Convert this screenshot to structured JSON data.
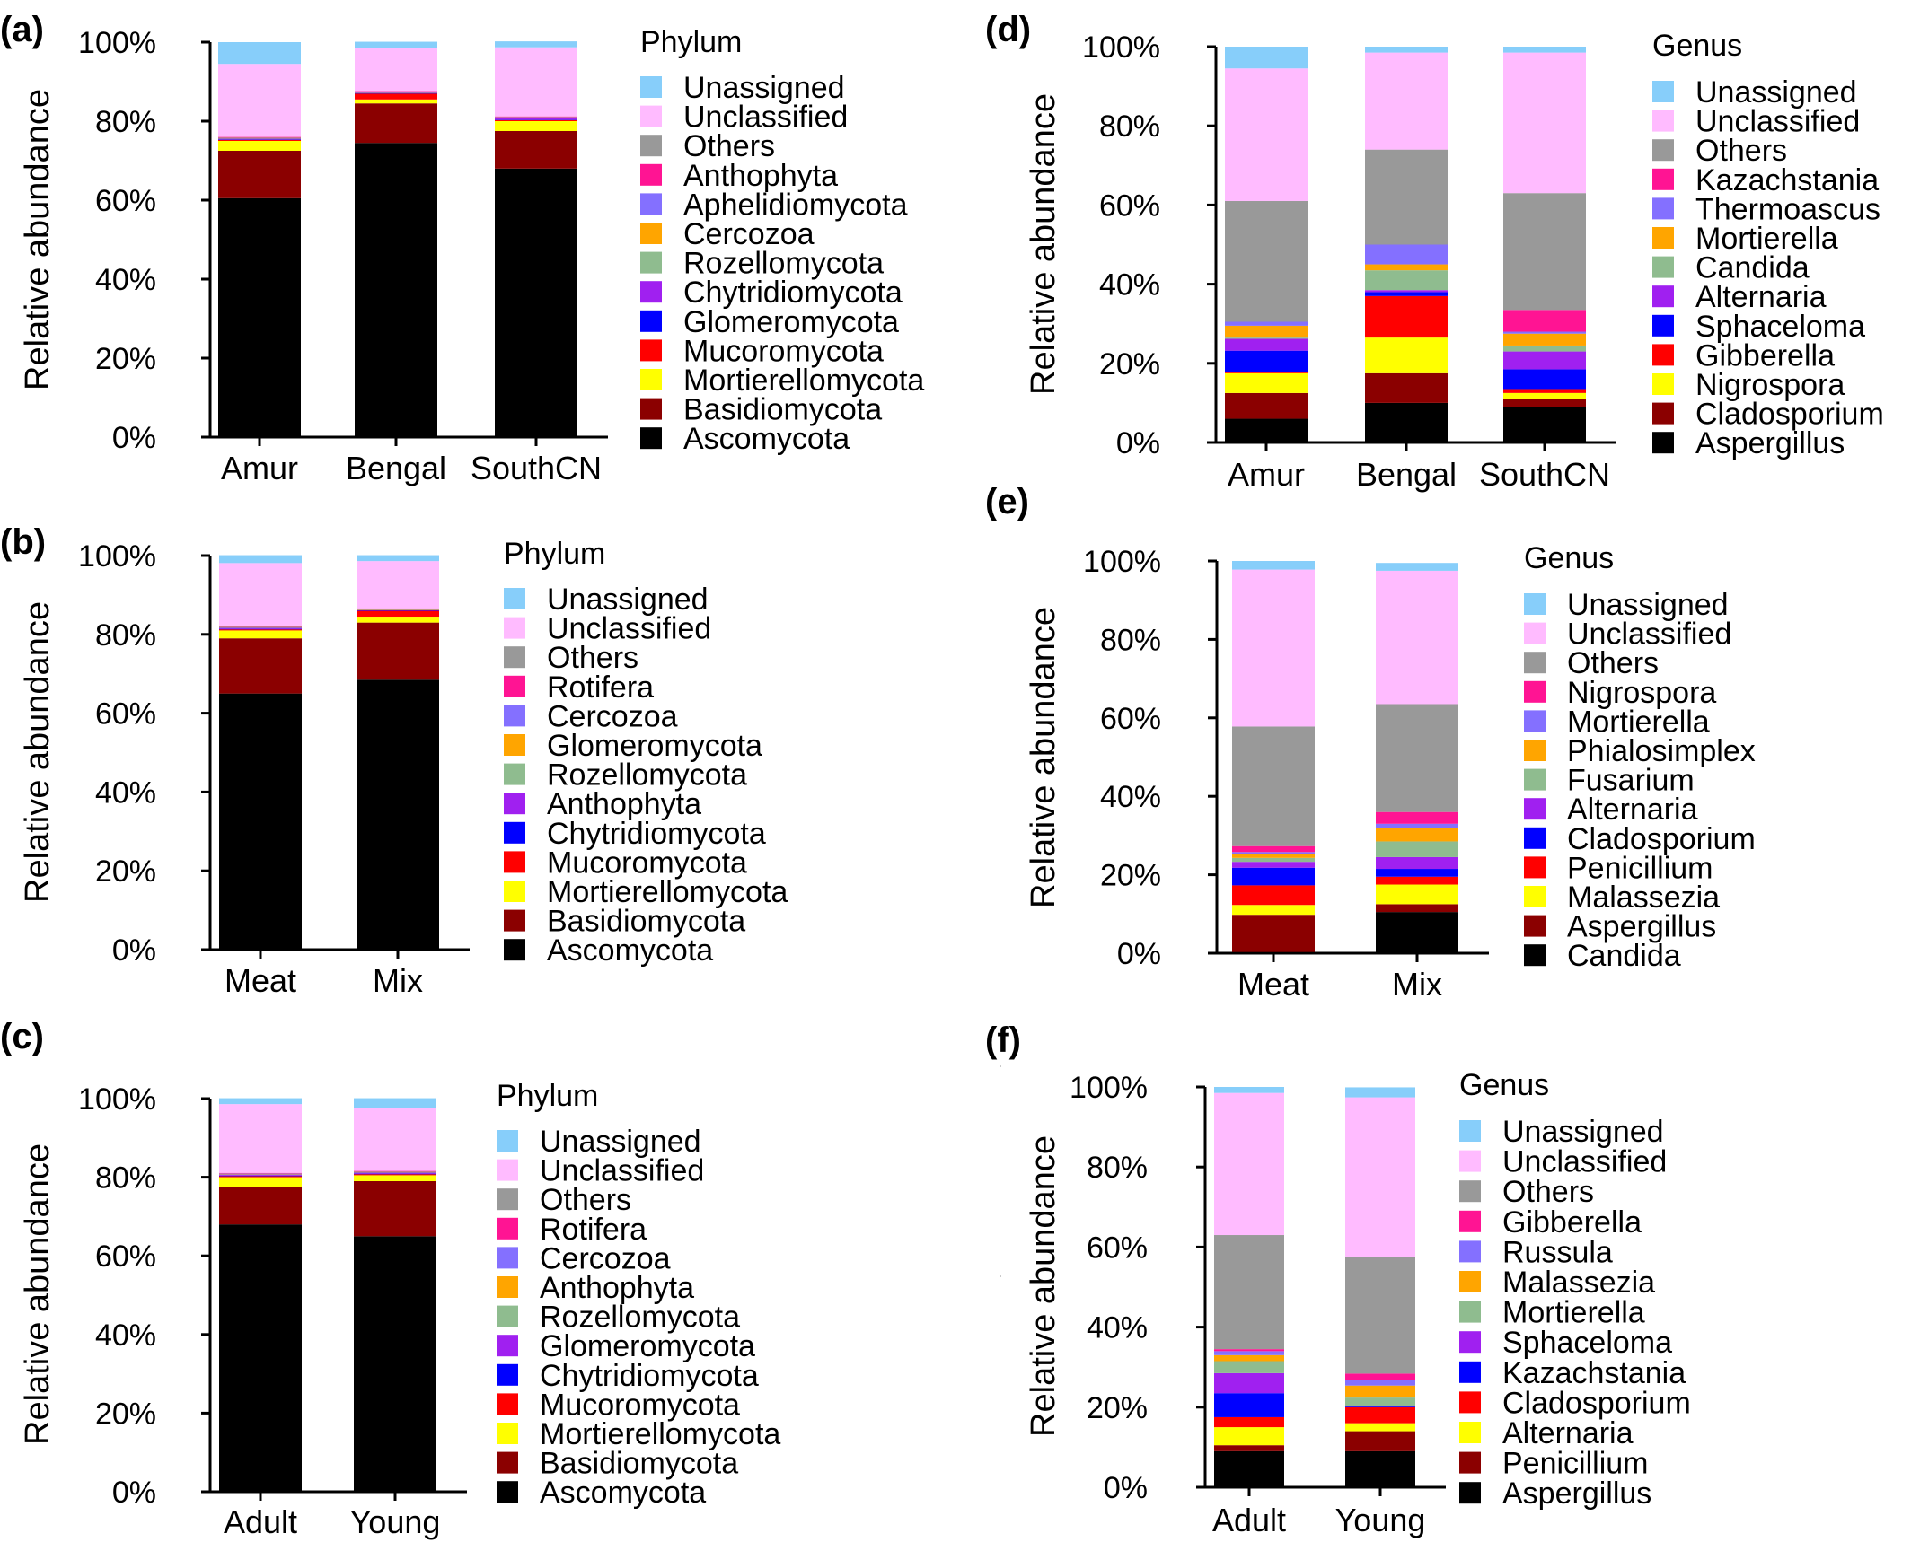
{
  "chart_data": [
    {
      "panel": "(a)",
      "type": "bar",
      "stacked": true,
      "ylabel": "Relative abundance",
      "yticks": [
        "0%",
        "20%",
        "40%",
        "60%",
        "80%",
        "100%"
      ],
      "ylim": [
        0,
        100
      ],
      "legend_title": "Phylum",
      "legend_position": "right",
      "categories": [
        "Amur",
        "Bengal",
        "SouthCN"
      ],
      "series": [
        {
          "name": "Ascomycota",
          "color": "#000000",
          "values": [
            60.5,
            74.5,
            68.0
          ]
        },
        {
          "name": "Basidiomycota",
          "color": "#8b0000",
          "values": [
            12.0,
            10.0,
            9.5
          ]
        },
        {
          "name": "Mortierellomycota",
          "color": "#ffff00",
          "values": [
            2.5,
            1.0,
            2.5
          ]
        },
        {
          "name": "Mucoromycota",
          "color": "#ff0000",
          "values": [
            0.3,
            1.5,
            0.3
          ]
        },
        {
          "name": "Glomeromycota",
          "color": "#0000ff",
          "values": [
            0.1,
            0.1,
            0.1
          ]
        },
        {
          "name": "Chytridiomycota",
          "color": "#a020f0",
          "values": [
            0.2,
            0.1,
            0.4
          ]
        },
        {
          "name": "Rozellomycota",
          "color": "#8fbc8f",
          "values": [
            0.1,
            0.1,
            0.1
          ]
        },
        {
          "name": "Cercozoa",
          "color": "#ffa500",
          "values": [
            0.1,
            0.1,
            0.1
          ]
        },
        {
          "name": "Aphelidiomycota",
          "color": "#8470ff",
          "values": [
            0.1,
            0.1,
            0.1
          ]
        },
        {
          "name": "Anthophyta",
          "color": "#ff1493",
          "values": [
            0.1,
            0.1,
            0.1
          ]
        },
        {
          "name": "Others",
          "color": "#999999",
          "values": [
            0.0,
            0.0,
            0.0
          ]
        },
        {
          "name": "Unclassified",
          "color": "#ffbbff",
          "values": [
            18.5,
            11.0,
            17.5
          ]
        },
        {
          "name": "Unassigned",
          "color": "#87cefa",
          "values": [
            5.5,
            1.5,
            1.5
          ]
        }
      ]
    },
    {
      "panel": "(b)",
      "type": "bar",
      "stacked": true,
      "ylabel": "Relative abundance",
      "yticks": [
        "0%",
        "20%",
        "40%",
        "60%",
        "80%",
        "100%"
      ],
      "ylim": [
        0,
        100
      ],
      "legend_title": "Phylum",
      "legend_position": "right",
      "categories": [
        "Meat",
        "Mix"
      ],
      "series": [
        {
          "name": "Ascomycota",
          "color": "#000000",
          "values": [
            65.0,
            68.5
          ]
        },
        {
          "name": "Basidiomycota",
          "color": "#8b0000",
          "values": [
            14.0,
            14.5
          ]
        },
        {
          "name": "Mortierellomycota",
          "color": "#ffff00",
          "values": [
            2.0,
            1.5
          ]
        },
        {
          "name": "Mucoromycota",
          "color": "#ff0000",
          "values": [
            0.3,
            1.5
          ]
        },
        {
          "name": "Chytridiomycota",
          "color": "#0000ff",
          "values": [
            0.1,
            0.1
          ]
        },
        {
          "name": "Anthophyta",
          "color": "#a020f0",
          "values": [
            0.3,
            0.1
          ]
        },
        {
          "name": "Rozellomycota",
          "color": "#8fbc8f",
          "values": [
            0.1,
            0.1
          ]
        },
        {
          "name": "Glomeromycota",
          "color": "#ffa500",
          "values": [
            0.1,
            0.1
          ]
        },
        {
          "name": "Cercozoa",
          "color": "#8470ff",
          "values": [
            0.1,
            0.1
          ]
        },
        {
          "name": "Rotifera",
          "color": "#ff1493",
          "values": [
            0.1,
            0.1
          ]
        },
        {
          "name": "Others",
          "color": "#999999",
          "values": [
            0.0,
            0.0
          ]
        },
        {
          "name": "Unclassified",
          "color": "#ffbbff",
          "values": [
            16.0,
            12.0
          ]
        },
        {
          "name": "Unassigned",
          "color": "#87cefa",
          "values": [
            2.0,
            1.5
          ]
        }
      ]
    },
    {
      "panel": "(c)",
      "type": "bar",
      "stacked": true,
      "ylabel": "Relative abundance",
      "yticks": [
        "0%",
        "20%",
        "40%",
        "60%",
        "80%",
        "100%"
      ],
      "ylim": [
        0,
        100
      ],
      "legend_title": "Phylum",
      "legend_position": "right",
      "categories": [
        "Adult",
        "Young"
      ],
      "series": [
        {
          "name": "Ascomycota",
          "color": "#000000",
          "values": [
            68.0,
            65.0
          ]
        },
        {
          "name": "Basidiomycota",
          "color": "#8b0000",
          "values": [
            9.5,
            14.0
          ]
        },
        {
          "name": "Mortierellomycota",
          "color": "#ffff00",
          "values": [
            2.5,
            1.5
          ]
        },
        {
          "name": "Mucoromycota",
          "color": "#ff0000",
          "values": [
            0.3,
            0.3
          ]
        },
        {
          "name": "Chytridiomycota",
          "color": "#0000ff",
          "values": [
            0.1,
            0.1
          ]
        },
        {
          "name": "Glomeromycota",
          "color": "#a020f0",
          "values": [
            0.3,
            0.3
          ]
        },
        {
          "name": "Rozellomycota",
          "color": "#8fbc8f",
          "values": [
            0.1,
            0.1
          ]
        },
        {
          "name": "Anthophyta",
          "color": "#ffa500",
          "values": [
            0.1,
            0.1
          ]
        },
        {
          "name": "Cercozoa",
          "color": "#8470ff",
          "values": [
            0.1,
            0.1
          ]
        },
        {
          "name": "Rotifera",
          "color": "#ff1493",
          "values": [
            0.1,
            0.1
          ]
        },
        {
          "name": "Others",
          "color": "#999999",
          "values": [
            0.0,
            0.0
          ]
        },
        {
          "name": "Unclassified",
          "color": "#ffbbff",
          "values": [
            17.5,
            16.0
          ]
        },
        {
          "name": "Unassigned",
          "color": "#87cefa",
          "values": [
            1.5,
            2.5
          ]
        }
      ]
    },
    {
      "panel": "(d)",
      "type": "bar",
      "stacked": true,
      "ylabel": "Relative abundance",
      "yticks": [
        "0%",
        "20%",
        "40%",
        "60%",
        "80%",
        "100%"
      ],
      "ylim": [
        0,
        100
      ],
      "legend_title": "Genus",
      "legend_position": "right",
      "categories": [
        "Amur",
        "Bengal",
        "SouthCN"
      ],
      "series": [
        {
          "name": "Aspergillus",
          "color": "#000000",
          "values": [
            6.0,
            10.0,
            9.0
          ]
        },
        {
          "name": "Cladosporium",
          "color": "#8b0000",
          "values": [
            6.5,
            7.5,
            2.0
          ]
        },
        {
          "name": "Nigrospora",
          "color": "#ffff00",
          "values": [
            5.0,
            9.0,
            1.5
          ]
        },
        {
          "name": "Gibberella",
          "color": "#ff0000",
          "values": [
            0.2,
            10.5,
            1.0
          ]
        },
        {
          "name": "Sphaceloma",
          "color": "#0000ff",
          "values": [
            5.5,
            1.0,
            5.0
          ]
        },
        {
          "name": "Alternaria",
          "color": "#a020f0",
          "values": [
            3.0,
            0.5,
            4.5
          ]
        },
        {
          "name": "Candida",
          "color": "#8fbc8f",
          "values": [
            0.3,
            5.0,
            1.5
          ]
        },
        {
          "name": "Mortierella",
          "color": "#ffa500",
          "values": [
            3.0,
            1.5,
            3.0
          ]
        },
        {
          "name": "Thermoascus",
          "color": "#8470ff",
          "values": [
            1.0,
            5.0,
            0.5
          ]
        },
        {
          "name": "Kazachstania",
          "color": "#ff1493",
          "values": [
            0.0,
            0.0,
            5.5
          ]
        },
        {
          "name": "Others",
          "color": "#999999",
          "values": [
            30.5,
            24.0,
            29.5
          ]
        },
        {
          "name": "Unclassified",
          "color": "#ffbbff",
          "values": [
            33.5,
            24.5,
            35.5
          ]
        },
        {
          "name": "Unassigned",
          "color": "#87cefa",
          "values": [
            5.5,
            1.5,
            1.5
          ]
        }
      ]
    },
    {
      "panel": "(e)",
      "type": "bar",
      "stacked": true,
      "ylabel": "Relative abundance",
      "yticks": [
        "0%",
        "20%",
        "40%",
        "60%",
        "80%",
        "100%"
      ],
      "ylim": [
        0,
        100
      ],
      "legend_title": "Genus",
      "legend_position": "right",
      "categories": [
        "Meat",
        "Mix"
      ],
      "series": [
        {
          "name": "Candida",
          "color": "#000000",
          "values": [
            0.3,
            10.5
          ]
        },
        {
          "name": "Aspergillus",
          "color": "#8b0000",
          "values": [
            9.5,
            2.0
          ]
        },
        {
          "name": "Malassezia",
          "color": "#ffff00",
          "values": [
            2.5,
            5.0
          ]
        },
        {
          "name": "Penicillium",
          "color": "#ff0000",
          "values": [
            5.0,
            2.0
          ]
        },
        {
          "name": "Cladosporium",
          "color": "#0000ff",
          "values": [
            4.5,
            2.0
          ]
        },
        {
          "name": "Alternaria",
          "color": "#a020f0",
          "values": [
            1.5,
            3.0
          ]
        },
        {
          "name": "Fusarium",
          "color": "#8fbc8f",
          "values": [
            1.0,
            4.0
          ]
        },
        {
          "name": "Phialosimplex",
          "color": "#ffa500",
          "values": [
            1.0,
            3.5
          ]
        },
        {
          "name": "Mortierella",
          "color": "#8470ff",
          "values": [
            0.5,
            1.0
          ]
        },
        {
          "name": "Nigrospora",
          "color": "#ff1493",
          "values": [
            1.5,
            3.0
          ]
        },
        {
          "name": "Others",
          "color": "#999999",
          "values": [
            30.5,
            27.5
          ]
        },
        {
          "name": "Unclassified",
          "color": "#ffbbff",
          "values": [
            40.0,
            34.0
          ]
        },
        {
          "name": "Unassigned",
          "color": "#87cefa",
          "values": [
            2.2,
            2.0
          ]
        }
      ]
    },
    {
      "panel": "(f)",
      "type": "bar",
      "stacked": true,
      "ylabel": "Relative abundance",
      "yticks": [
        "0%",
        "20%",
        "40%",
        "60%",
        "80%",
        "100%"
      ],
      "ylim": [
        0,
        100
      ],
      "legend_title": "Genus",
      "legend_position": "right",
      "categories": [
        "Adult",
        "Young"
      ],
      "series": [
        {
          "name": "Aspergillus",
          "color": "#000000",
          "values": [
            9.0,
            9.0
          ]
        },
        {
          "name": "Penicillium",
          "color": "#8b0000",
          "values": [
            1.5,
            5.0
          ]
        },
        {
          "name": "Alternaria",
          "color": "#ffff00",
          "values": [
            4.5,
            2.0
          ]
        },
        {
          "name": "Cladosporium",
          "color": "#ff0000",
          "values": [
            2.5,
            4.0
          ]
        },
        {
          "name": "Kazachstania",
          "color": "#0000ff",
          "values": [
            6.0,
            0.2
          ]
        },
        {
          "name": "Sphaceloma",
          "color": "#a020f0",
          "values": [
            5.0,
            0.2
          ]
        },
        {
          "name": "Mortierella",
          "color": "#8fbc8f",
          "values": [
            3.0,
            2.0
          ]
        },
        {
          "name": "Malassezia",
          "color": "#ffa500",
          "values": [
            1.5,
            3.0
          ]
        },
        {
          "name": "Russula",
          "color": "#8470ff",
          "values": [
            1.0,
            1.5
          ]
        },
        {
          "name": "Gibberella",
          "color": "#ff1493",
          "values": [
            0.5,
            1.5
          ]
        },
        {
          "name": "Others",
          "color": "#999999",
          "values": [
            28.5,
            29.0
          ]
        },
        {
          "name": "Unclassified",
          "color": "#ffbbff",
          "values": [
            35.5,
            40.0
          ]
        },
        {
          "name": "Unassigned",
          "color": "#87cefa",
          "values": [
            1.5,
            2.5
          ]
        }
      ]
    }
  ]
}
